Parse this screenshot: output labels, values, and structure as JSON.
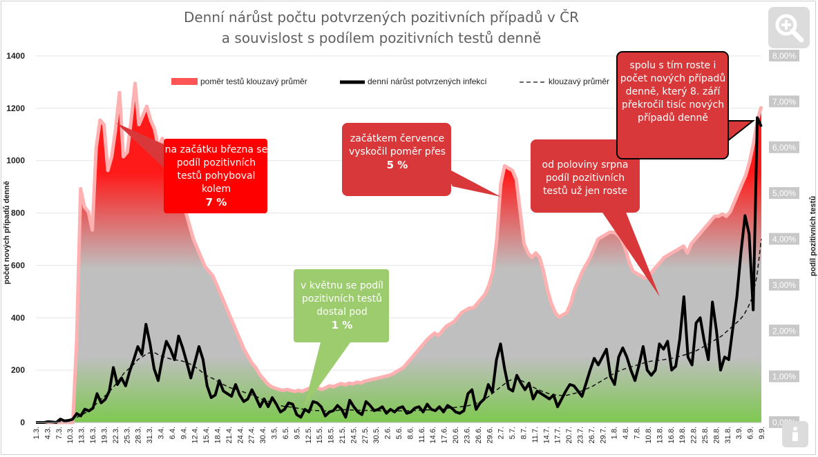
{
  "title_line1": "Denní nárůst počtu potvrzených pozitivních případů v ČR",
  "title_line2": "a souvislost s podílem pozitivních testů denně",
  "icons": {
    "zoom": "zoom-in-icon",
    "info": "info-icon"
  },
  "colors": {
    "ratio_top": "#ff1a1a",
    "ratio_mid": "#bfbfbf",
    "ratio_bottom": "#7ec850",
    "callout_red": "#d9383a",
    "callout_green": "#9ccc6e",
    "line_black": "#000000"
  },
  "callouts": {
    "march": {
      "text": "na začátku března se podíl pozitivních testů pohyboval kolem",
      "value": "7 %"
    },
    "may": {
      "text": "v květnu se podíl pozitivních testů dostal pod",
      "value": "1 %"
    },
    "july": {
      "text": "začátkem července vyskočil poměr přes",
      "value": "5 %"
    },
    "august": {
      "text": "od poloviny srpna podíl pozitivních testů už jen roste"
    },
    "september": {
      "text": "spolu s tím roste i počet nových případů denně, který 8. září překročil tisíc nových případů denně"
    }
  },
  "chart_data": {
    "type": "area+line",
    "ylabel": "počet nových případů denně",
    "y2label": "podíl pozitivních testů",
    "ylim": [
      0,
      1400
    ],
    "y2lim": [
      0,
      8
    ],
    "yticks": [
      "0",
      "200",
      "400",
      "600",
      "800",
      "1000",
      "1200",
      "1400"
    ],
    "y2ticks": [
      "0,00%",
      "1,00%",
      "2,00%",
      "3,00%",
      "4,00%",
      "5,00%",
      "6,00%",
      "7,00%",
      "8,00%"
    ],
    "legend": [
      "poměr testů klouzavý průměr",
      "denní nárůst potvrzených infekcí",
      "klouzavý průměr"
    ],
    "x_tick_labels": [
      "1.3.",
      "4.3.",
      "7.3.",
      "10.3.",
      "13.3.",
      "16.3.",
      "19.3.",
      "22.3.",
      "25.3.",
      "28.3.",
      "31.3.",
      "3.4.",
      "6.4.",
      "9.4.",
      "12.4.",
      "15.4.",
      "18.4.",
      "21.4.",
      "24.4.",
      "27.4.",
      "30.4.",
      "3.5.",
      "6.5.",
      "9.5.",
      "12.5.",
      "15.5.",
      "18.5.",
      "21.5.",
      "24.5.",
      "27.5.",
      "30.5.",
      "2.6.",
      "5.6.",
      "8.6.",
      "11.6.",
      "14.6.",
      "17.6.",
      "20.6.",
      "23.6.",
      "26.6.",
      "29.6.",
      "2.7.",
      "5.7.",
      "8.7.",
      "11.7.",
      "14.7.",
      "17.7.",
      "20.7.",
      "23.7.",
      "26.7.",
      "29.7.",
      "1.8.",
      "4.8.",
      "7.8.",
      "10.8.",
      "13.8.",
      "16.8.",
      "19.8.",
      "22.8.",
      "25.8.",
      "28.8.",
      "31.8.",
      "3.9.",
      "6.9.",
      "9.9."
    ],
    "ratio_pct": [
      0,
      0,
      0,
      0,
      0,
      0,
      0,
      0,
      1.8,
      5.1,
      4.7,
      4.6,
      4.2,
      6.0,
      6.6,
      6.5,
      5.5,
      5.8,
      6.4,
      7.2,
      5.8,
      5.9,
      6.6,
      7.4,
      6.5,
      6.7,
      6.9,
      6.6,
      6.4,
      6.0,
      6.2,
      6.0,
      5.9,
      5.6,
      5.3,
      5.0,
      4.6,
      4.3,
      4.0,
      3.8,
      3.6,
      3.4,
      3.3,
      3.2,
      3.0,
      2.8,
      2.6,
      2.4,
      2.2,
      2.0,
      1.8,
      1.6,
      1.45,
      1.3,
      1.2,
      1.05,
      0.95,
      0.85,
      0.78,
      0.75,
      0.72,
      0.7,
      0.72,
      0.7,
      0.68,
      0.7,
      0.68,
      0.72,
      0.75,
      0.78,
      0.75,
      0.72,
      0.76,
      0.8,
      0.78,
      0.82,
      0.85,
      0.82,
      0.86,
      0.84,
      0.88,
      0.86,
      0.9,
      0.92,
      0.94,
      0.96,
      0.98,
      1.0,
      1.02,
      1.05,
      1.1,
      1.15,
      1.2,
      1.3,
      1.4,
      1.5,
      1.6,
      1.7,
      1.8,
      1.88,
      1.95,
      1.9,
      2.0,
      2.1,
      2.15,
      2.2,
      2.3,
      2.4,
      2.45,
      2.5,
      2.5,
      2.6,
      2.7,
      2.8,
      3.0,
      3.3,
      4.0,
      5.2,
      5.6,
      5.55,
      5.5,
      5.3,
      4.6,
      3.9,
      3.7,
      3.6,
      3.7,
      3.6,
      3.3,
      2.9,
      2.6,
      2.4,
      2.3,
      2.35,
      2.4,
      2.6,
      2.9,
      3.1,
      3.3,
      3.45,
      3.6,
      3.8,
      4.0,
      4.05,
      4.1,
      4.15,
      4.15,
      4.1,
      4.0,
      3.8,
      3.5,
      3.3,
      3.25,
      3.2,
      3.15,
      3.2,
      3.3,
      3.4,
      3.5,
      3.6,
      3.65,
      3.7,
      3.75,
      3.8,
      3.85,
      3.7,
      3.9,
      4.0,
      4.1,
      4.2,
      4.3,
      4.4,
      4.5,
      4.5,
      4.55,
      4.5,
      4.6,
      4.8,
      5.0,
      5.2,
      5.4,
      5.7,
      6.1,
      6.6,
      6.9
    ],
    "daily_cases": [
      0,
      0,
      0,
      3,
      2,
      0,
      13,
      6,
      8,
      12,
      34,
      25,
      51,
      44,
      55,
      110,
      75,
      88,
      120,
      210,
      145,
      170,
      140,
      195,
      240,
      290,
      260,
      375,
      300,
      205,
      160,
      245,
      310,
      280,
      240,
      330,
      285,
      230,
      170,
      230,
      290,
      240,
      140,
      95,
      105,
      160,
      120,
      110,
      100,
      145,
      105,
      80,
      90,
      125,
      95,
      60,
      90,
      60,
      95,
      70,
      40,
      50,
      75,
      70,
      30,
      20,
      50,
      40,
      80,
      75,
      60,
      25,
      40,
      45,
      65,
      50,
      20,
      85,
      60,
      40,
      30,
      80,
      65,
      45,
      50,
      60,
      35,
      50,
      40,
      55,
      60,
      35,
      40,
      55,
      60,
      40,
      70,
      50,
      45,
      60,
      40,
      65,
      55,
      40,
      35,
      45,
      110,
      125,
      50,
      75,
      90,
      145,
      115,
      240,
      300,
      205,
      130,
      120,
      180,
      150,
      125,
      150,
      90,
      120,
      110,
      100,
      90,
      105,
      60,
      90,
      120,
      145,
      140,
      120,
      100,
      150,
      200,
      245,
      220,
      250,
      280,
      175,
      145,
      250,
      285,
      250,
      200,
      160,
      220,
      290,
      200,
      180,
      200,
      300,
      280,
      310,
      200,
      215,
      320,
      480,
      250,
      220,
      380,
      400,
      310,
      240,
      460,
      350,
      200,
      250,
      240,
      360,
      480,
      650,
      790,
      720,
      430,
      1164,
      1130
    ],
    "moving_avg": [
      0,
      0,
      0,
      1,
      2,
      3,
      5,
      8,
      11,
      18,
      25,
      35,
      47,
      62,
      76,
      93,
      107,
      125,
      145,
      168,
      190,
      205,
      220,
      240,
      250,
      262,
      268,
      265,
      256,
      250,
      245,
      240,
      238,
      235,
      230,
      222,
      212,
      200,
      185,
      175,
      168,
      158,
      148,
      140,
      132,
      128,
      122,
      116,
      110,
      104,
      98,
      90,
      84,
      78,
      72,
      66,
      62,
      60,
      58,
      55,
      52,
      50,
      48,
      46,
      45,
      44,
      44,
      45,
      46,
      48,
      49,
      48,
      47,
      47,
      46,
      46,
      45,
      45,
      44,
      44,
      44,
      43,
      44,
      45,
      45,
      46,
      46,
      47,
      48,
      48,
      49,
      50,
      52,
      54,
      56,
      58,
      60,
      62,
      65,
      70,
      76,
      84,
      95,
      108,
      122,
      135,
      148,
      160,
      166,
      165,
      158,
      148,
      138,
      130,
      122,
      116,
      110,
      106,
      104,
      103,
      104,
      108,
      112,
      118,
      125,
      132,
      140,
      150,
      160,
      170,
      180,
      190,
      198,
      204,
      210,
      215,
      220,
      225,
      230,
      234,
      236,
      238,
      240,
      243,
      246,
      250,
      255,
      260,
      266,
      272,
      280,
      290,
      300,
      310,
      320,
      330,
      345,
      360,
      375,
      390,
      410,
      440,
      480,
      560,
      700
    ]
  }
}
